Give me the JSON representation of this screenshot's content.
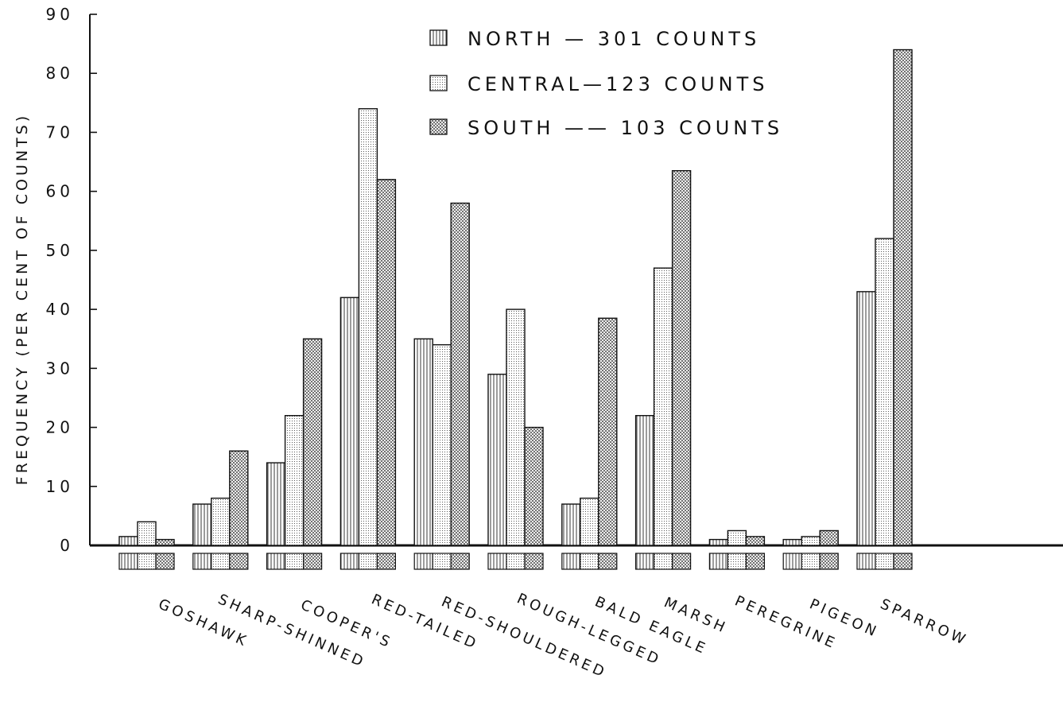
{
  "chart_data": {
    "type": "bar",
    "ylabel": "FREQUENCY (PER CENT OF COUNTS)",
    "ylim": [
      0,
      90
    ],
    "yticks": [
      "0",
      "10",
      "20",
      "30",
      "40",
      "50",
      "60",
      "70",
      "80",
      "90"
    ],
    "categories": [
      "GOSHAWK",
      "SHARP-SHINNED",
      "COOPER'S",
      "RED-TAILED",
      "RED-SHOULDERED",
      "ROUGH-LEGGED",
      "BALD EAGLE",
      "MARSH",
      "PEREGRINE",
      "PIGEON",
      "SPARROW"
    ],
    "series": [
      {
        "name": "NORTH — 301 COUNTS",
        "pattern": "vertical-lines",
        "values": [
          1.5,
          7,
          14,
          42,
          35,
          29,
          7,
          22,
          1,
          1,
          43
        ]
      },
      {
        "name": "CENTRAL—123 COUNTS",
        "pattern": "fine-dots",
        "values": [
          4,
          8,
          22,
          74,
          34,
          40,
          8,
          47,
          2.5,
          1.5,
          52
        ]
      },
      {
        "name": "SOUTH —— 103 COUNTS",
        "pattern": "cross-hatch",
        "values": [
          1,
          16,
          35,
          62,
          58,
          20,
          38.5,
          63.5,
          1.5,
          2.5,
          84
        ]
      }
    ],
    "grid": false,
    "legend_position": "top-center",
    "colors": {
      "ink": "#111111",
      "background": "#ffffff"
    }
  }
}
